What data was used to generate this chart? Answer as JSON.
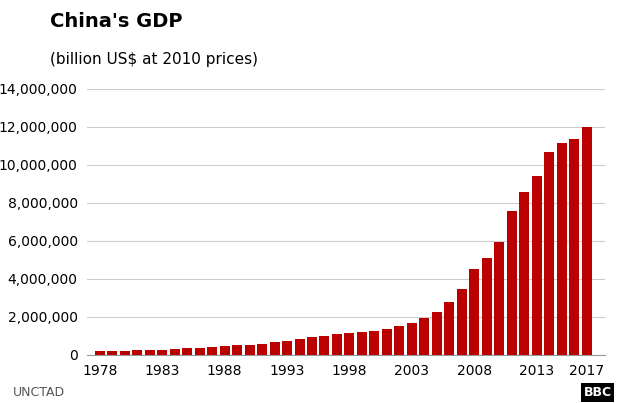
{
  "title": "China's GDP",
  "subtitle": "(billion US$ at 2010 prices)",
  "bar_color": "#bb0000",
  "background_color": "#ffffff",
  "footer_left": "UNCTAD",
  "footer_right": "BBC",
  "ylim": [
    0,
    14000000
  ],
  "yticks": [
    0,
    2000000,
    4000000,
    6000000,
    8000000,
    10000000,
    12000000,
    14000000
  ],
  "years": [
    1978,
    1979,
    1980,
    1981,
    1982,
    1983,
    1984,
    1985,
    1986,
    1987,
    1988,
    1989,
    1990,
    1991,
    1992,
    1993,
    1994,
    1995,
    1996,
    1997,
    1998,
    1999,
    2000,
    2001,
    2002,
    2003,
    2004,
    2005,
    2006,
    2007,
    2008,
    2009,
    2010,
    2011,
    2012,
    2013,
    2014,
    2015,
    2016,
    2017
  ],
  "gdp": [
    189000,
    202000,
    213000,
    220000,
    238000,
    265000,
    308000,
    340000,
    371000,
    415000,
    464000,
    487000,
    510000,
    555000,
    640000,
    730000,
    820000,
    910000,
    990000,
    1070000,
    1120000,
    1180000,
    1260000,
    1360000,
    1490000,
    1660000,
    1940000,
    2260000,
    2750000,
    3430000,
    4520000,
    5110000,
    5930000,
    7580000,
    8560000,
    9380000,
    10640000,
    11150000,
    11360000,
    12000000
  ],
  "xtick_years": [
    1978,
    1983,
    1988,
    1993,
    1998,
    2003,
    2008,
    2013,
    2017
  ],
  "grid_color": "#cccccc",
  "title_fontsize": 14,
  "subtitle_fontsize": 11,
  "tick_fontsize": 10,
  "footer_fontsize": 9
}
